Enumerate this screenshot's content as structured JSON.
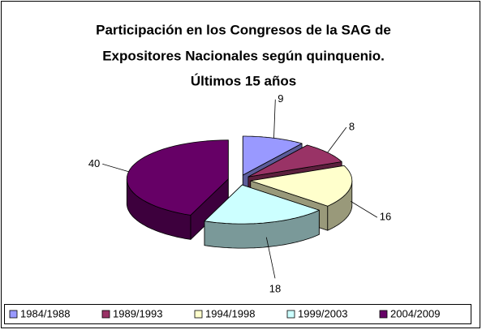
{
  "chart_data": {
    "type": "pie3d",
    "title": [
      "Participación en los Congresos de la SAG de",
      "Expositores Nacionales según quinquenio.",
      "Últimos 15 años"
    ],
    "categories": [
      "1984/1988",
      "1989/1993",
      "1994/1998",
      "1999/2003",
      "2004/2009"
    ],
    "values": [
      9,
      8,
      16,
      18,
      40
    ],
    "colors": [
      "#9999ff",
      "#993366",
      "#ffffcc",
      "#ccffff",
      "#660066"
    ],
    "legend": "bottom"
  }
}
